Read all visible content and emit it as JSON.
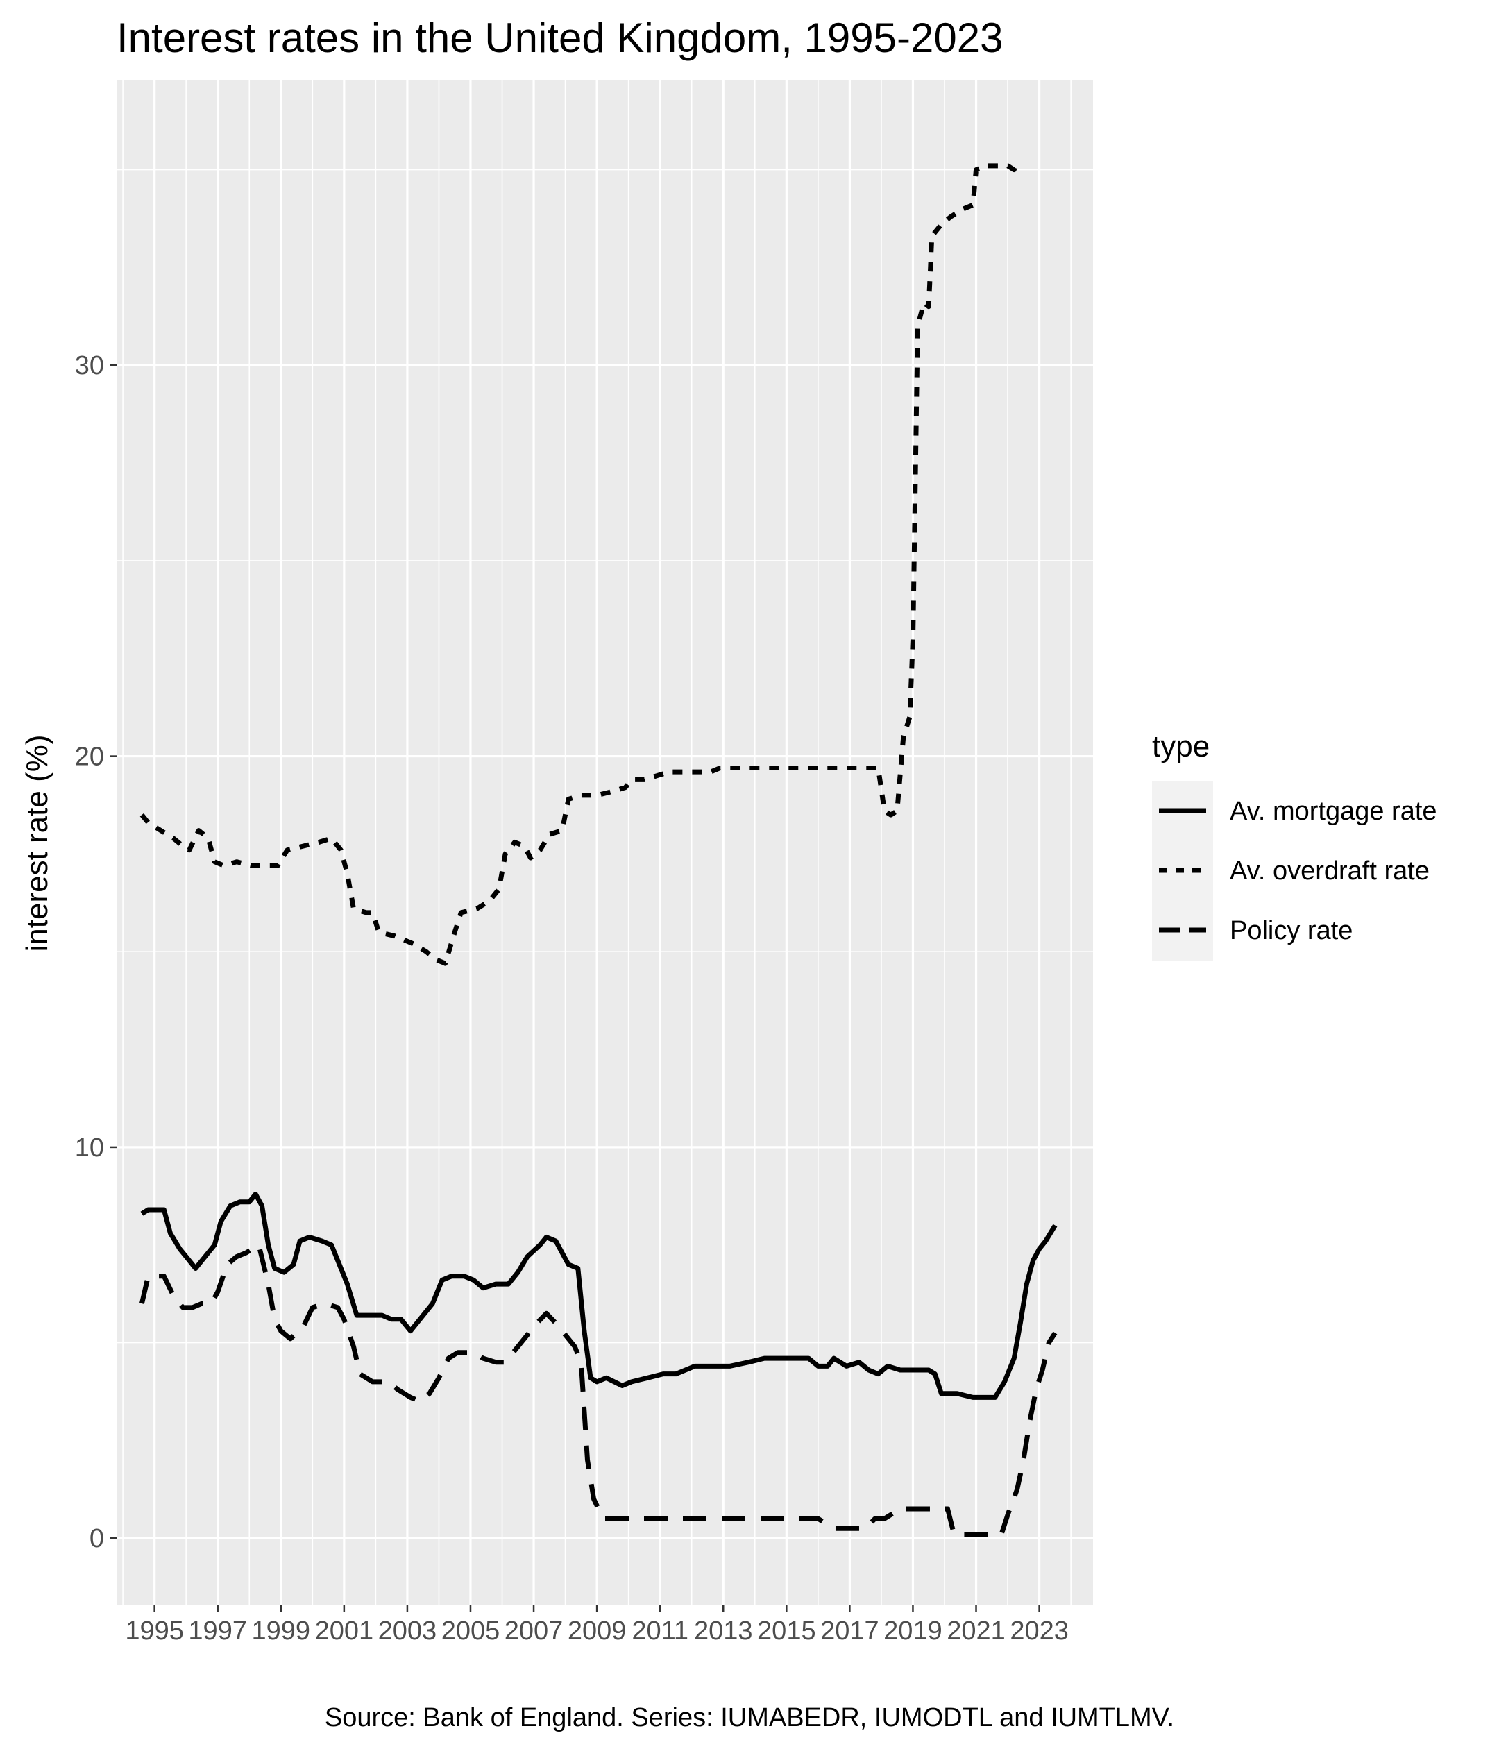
{
  "chart_data": {
    "type": "line",
    "title": "Interest rates in the United Kingdom, 1995-2023",
    "ylabel": "interest rate (%)",
    "xlabel": "",
    "caption": "Source: Bank of England. Series: IUMABEDR, IUMODTL and IUMTLMV.",
    "legend": {
      "title": "type",
      "placement": "right"
    },
    "xlim": [
      1993.8,
      2024.7
    ],
    "ylim": [
      -1.7,
      37.3
    ],
    "x_ticks": [
      1995,
      1997,
      1999,
      2001,
      2003,
      2005,
      2007,
      2009,
      2011,
      2013,
      2015,
      2017,
      2019,
      2021,
      2023
    ],
    "x_tick_labels": [
      "1995",
      "1997",
      "1999",
      "2001",
      "2003",
      "2005",
      "2007",
      "2009",
      "2011",
      "2013",
      "2015",
      "2017",
      "2019",
      "2021",
      "2023"
    ],
    "y_ticks": [
      0,
      10,
      20,
      30
    ],
    "y_tick_labels": [
      "0",
      "10",
      "20",
      "30"
    ],
    "grid": true,
    "background": "#ebebeb",
    "series": [
      {
        "name": "Av. mortgage rate",
        "linetype": "solid",
        "color": "#000000",
        "points": [
          [
            1994.6,
            8.3
          ],
          [
            1994.8,
            8.4
          ],
          [
            1995.3,
            8.4
          ],
          [
            1995.5,
            7.8
          ],
          [
            1995.8,
            7.4
          ],
          [
            1996.0,
            7.2
          ],
          [
            1996.3,
            6.9
          ],
          [
            1996.6,
            7.2
          ],
          [
            1996.9,
            7.5
          ],
          [
            1997.1,
            8.1
          ],
          [
            1997.4,
            8.5
          ],
          [
            1997.7,
            8.6
          ],
          [
            1998.0,
            8.6
          ],
          [
            1998.2,
            8.8
          ],
          [
            1998.4,
            8.5
          ],
          [
            1998.6,
            7.5
          ],
          [
            1998.8,
            6.9
          ],
          [
            1999.1,
            6.8
          ],
          [
            1999.4,
            7.0
          ],
          [
            1999.6,
            7.6
          ],
          [
            1999.9,
            7.7
          ],
          [
            2000.3,
            7.6
          ],
          [
            2000.6,
            7.5
          ],
          [
            2000.9,
            6.9
          ],
          [
            2001.1,
            6.5
          ],
          [
            2001.4,
            5.7
          ],
          [
            2001.7,
            5.7
          ],
          [
            2002.2,
            5.7
          ],
          [
            2002.5,
            5.6
          ],
          [
            2002.8,
            5.6
          ],
          [
            2003.1,
            5.3
          ],
          [
            2003.4,
            5.6
          ],
          [
            2003.8,
            6.0
          ],
          [
            2004.1,
            6.6
          ],
          [
            2004.4,
            6.7
          ],
          [
            2004.8,
            6.7
          ],
          [
            2005.1,
            6.6
          ],
          [
            2005.4,
            6.4
          ],
          [
            2005.8,
            6.5
          ],
          [
            2006.2,
            6.5
          ],
          [
            2006.5,
            6.8
          ],
          [
            2006.8,
            7.2
          ],
          [
            2007.2,
            7.5
          ],
          [
            2007.4,
            7.7
          ],
          [
            2007.7,
            7.6
          ],
          [
            2007.9,
            7.3
          ],
          [
            2008.1,
            7.0
          ],
          [
            2008.4,
            6.9
          ],
          [
            2008.6,
            5.3
          ],
          [
            2008.8,
            4.1
          ],
          [
            2009.0,
            4.0
          ],
          [
            2009.3,
            4.1
          ],
          [
            2009.8,
            3.9
          ],
          [
            2010.1,
            4.0
          ],
          [
            2010.6,
            4.1
          ],
          [
            2011.1,
            4.2
          ],
          [
            2011.5,
            4.2
          ],
          [
            2012.1,
            4.4
          ],
          [
            2012.7,
            4.4
          ],
          [
            2013.2,
            4.4
          ],
          [
            2013.8,
            4.5
          ],
          [
            2014.3,
            4.6
          ],
          [
            2014.8,
            4.6
          ],
          [
            2015.2,
            4.6
          ],
          [
            2015.7,
            4.6
          ],
          [
            2016.0,
            4.4
          ],
          [
            2016.3,
            4.4
          ],
          [
            2016.5,
            4.6
          ],
          [
            2016.9,
            4.4
          ],
          [
            2017.3,
            4.5
          ],
          [
            2017.6,
            4.3
          ],
          [
            2017.9,
            4.2
          ],
          [
            2018.2,
            4.4
          ],
          [
            2018.6,
            4.3
          ],
          [
            2019.0,
            4.3
          ],
          [
            2019.5,
            4.3
          ],
          [
            2019.7,
            4.2
          ],
          [
            2019.9,
            3.7
          ],
          [
            2020.4,
            3.7
          ],
          [
            2020.9,
            3.6
          ],
          [
            2021.3,
            3.6
          ],
          [
            2021.6,
            3.6
          ],
          [
            2021.9,
            4.0
          ],
          [
            2022.2,
            4.6
          ],
          [
            2022.4,
            5.5
          ],
          [
            2022.6,
            6.5
          ],
          [
            2022.8,
            7.1
          ],
          [
            2023.0,
            7.4
          ],
          [
            2023.2,
            7.6
          ],
          [
            2023.5,
            8.0
          ]
        ]
      },
      {
        "name": "Av. overdraft rate",
        "linetype": "dotted",
        "color": "#000000",
        "points": [
          [
            1994.6,
            18.5
          ],
          [
            1994.8,
            18.3
          ],
          [
            1995.2,
            18.1
          ],
          [
            1995.6,
            17.9
          ],
          [
            1995.9,
            17.7
          ],
          [
            1996.1,
            17.6
          ],
          [
            1996.4,
            18.1
          ],
          [
            1996.7,
            17.9
          ],
          [
            1996.9,
            17.3
          ],
          [
            1997.2,
            17.2
          ],
          [
            1997.6,
            17.3
          ],
          [
            1998.1,
            17.2
          ],
          [
            1998.6,
            17.2
          ],
          [
            1998.9,
            17.2
          ],
          [
            1999.2,
            17.6
          ],
          [
            1999.7,
            17.7
          ],
          [
            2000.2,
            17.8
          ],
          [
            2000.6,
            17.9
          ],
          [
            2000.9,
            17.6
          ],
          [
            2001.1,
            17.0
          ],
          [
            2001.3,
            16.1
          ],
          [
            2001.7,
            16.0
          ],
          [
            2001.9,
            16.0
          ],
          [
            2002.1,
            15.5
          ],
          [
            2002.6,
            15.4
          ],
          [
            2002.9,
            15.3
          ],
          [
            2003.2,
            15.2
          ],
          [
            2003.6,
            15.0
          ],
          [
            2003.9,
            14.8
          ],
          [
            2004.2,
            14.7
          ],
          [
            2004.5,
            15.5
          ],
          [
            2004.7,
            16.0
          ],
          [
            2005.2,
            16.1
          ],
          [
            2005.6,
            16.3
          ],
          [
            2005.9,
            16.6
          ],
          [
            2006.1,
            17.5
          ],
          [
            2006.4,
            17.8
          ],
          [
            2006.7,
            17.7
          ],
          [
            2006.9,
            17.4
          ],
          [
            2007.2,
            17.6
          ],
          [
            2007.5,
            18.0
          ],
          [
            2007.9,
            18.1
          ],
          [
            2008.1,
            18.9
          ],
          [
            2008.5,
            19.0
          ],
          [
            2009.0,
            19.0
          ],
          [
            2009.5,
            19.1
          ],
          [
            2009.9,
            19.2
          ],
          [
            2010.1,
            19.4
          ],
          [
            2010.5,
            19.4
          ],
          [
            2010.9,
            19.5
          ],
          [
            2011.3,
            19.6
          ],
          [
            2011.7,
            19.6
          ],
          [
            2012.1,
            19.6
          ],
          [
            2012.6,
            19.6
          ],
          [
            2012.9,
            19.7
          ],
          [
            2013.5,
            19.7
          ],
          [
            2014.1,
            19.7
          ],
          [
            2014.6,
            19.7
          ],
          [
            2015.1,
            19.7
          ],
          [
            2015.6,
            19.7
          ],
          [
            2016.1,
            19.7
          ],
          [
            2016.6,
            19.7
          ],
          [
            2017.1,
            19.7
          ],
          [
            2017.6,
            19.7
          ],
          [
            2017.9,
            19.7
          ],
          [
            2018.1,
            18.6
          ],
          [
            2018.3,
            18.5
          ],
          [
            2018.5,
            18.6
          ],
          [
            2018.7,
            20.5
          ],
          [
            2018.9,
            21.0
          ],
          [
            2019.0,
            23.0
          ],
          [
            2019.15,
            31.0
          ],
          [
            2019.35,
            31.6
          ],
          [
            2019.5,
            31.5
          ],
          [
            2019.6,
            33.3
          ],
          [
            2019.9,
            33.6
          ],
          [
            2020.2,
            33.8
          ],
          [
            2020.6,
            34.0
          ],
          [
            2020.9,
            34.1
          ],
          [
            2021.0,
            35.0
          ],
          [
            2021.3,
            35.1
          ],
          [
            2021.6,
            35.1
          ],
          [
            2022.0,
            35.1
          ],
          [
            2022.2,
            35.0
          ],
          [
            2022.3,
            35.2
          ]
        ]
      },
      {
        "name": "Policy rate",
        "linetype": "dashed",
        "color": "#000000",
        "points": [
          [
            1994.6,
            6.0
          ],
          [
            1994.8,
            6.7
          ],
          [
            1995.3,
            6.7
          ],
          [
            1995.6,
            6.2
          ],
          [
            1995.9,
            5.9
          ],
          [
            1996.2,
            5.9
          ],
          [
            1996.5,
            6.0
          ],
          [
            1996.8,
            6.0
          ],
          [
            1997.0,
            6.3
          ],
          [
            1997.3,
            7.0
          ],
          [
            1997.6,
            7.2
          ],
          [
            1997.9,
            7.3
          ],
          [
            1998.1,
            7.4
          ],
          [
            1998.3,
            7.5
          ],
          [
            1998.6,
            6.5
          ],
          [
            1998.8,
            5.6
          ],
          [
            1999.0,
            5.3
          ],
          [
            1999.3,
            5.1
          ],
          [
            1999.7,
            5.4
          ],
          [
            2000.0,
            5.9
          ],
          [
            2000.4,
            6.0
          ],
          [
            2000.8,
            5.9
          ],
          [
            2001.0,
            5.6
          ],
          [
            2001.3,
            4.9
          ],
          [
            2001.5,
            4.2
          ],
          [
            2001.9,
            4.0
          ],
          [
            2002.4,
            4.0
          ],
          [
            2002.7,
            3.8
          ],
          [
            2003.1,
            3.6
          ],
          [
            2003.4,
            3.5
          ],
          [
            2003.7,
            3.7
          ],
          [
            2004.0,
            4.1
          ],
          [
            2004.3,
            4.6
          ],
          [
            2004.6,
            4.75
          ],
          [
            2005.1,
            4.75
          ],
          [
            2005.4,
            4.6
          ],
          [
            2005.8,
            4.5
          ],
          [
            2006.1,
            4.5
          ],
          [
            2006.5,
            4.9
          ],
          [
            2006.8,
            5.2
          ],
          [
            2007.1,
            5.5
          ],
          [
            2007.4,
            5.75
          ],
          [
            2007.7,
            5.5
          ],
          [
            2008.0,
            5.2
          ],
          [
            2008.3,
            4.9
          ],
          [
            2008.5,
            4.5
          ],
          [
            2008.7,
            2.0
          ],
          [
            2008.9,
            1.0
          ],
          [
            2009.2,
            0.5
          ],
          [
            2010.0,
            0.5
          ],
          [
            2011.0,
            0.5
          ],
          [
            2012.0,
            0.5
          ],
          [
            2013.0,
            0.5
          ],
          [
            2014.0,
            0.5
          ],
          [
            2015.0,
            0.5
          ],
          [
            2016.0,
            0.5
          ],
          [
            2016.5,
            0.25
          ],
          [
            2017.0,
            0.25
          ],
          [
            2017.5,
            0.25
          ],
          [
            2017.8,
            0.5
          ],
          [
            2018.1,
            0.5
          ],
          [
            2018.6,
            0.75
          ],
          [
            2019.2,
            0.75
          ],
          [
            2019.6,
            0.75
          ],
          [
            2020.1,
            0.75
          ],
          [
            2020.3,
            0.1
          ],
          [
            2020.8,
            0.1
          ],
          [
            2021.3,
            0.1
          ],
          [
            2021.8,
            0.1
          ],
          [
            2022.0,
            0.6
          ],
          [
            2022.3,
            1.25
          ],
          [
            2022.5,
            2.0
          ],
          [
            2022.7,
            3.0
          ],
          [
            2022.9,
            3.8
          ],
          [
            2023.1,
            4.3
          ],
          [
            2023.3,
            5.0
          ],
          [
            2023.5,
            5.25
          ]
        ]
      }
    ]
  }
}
